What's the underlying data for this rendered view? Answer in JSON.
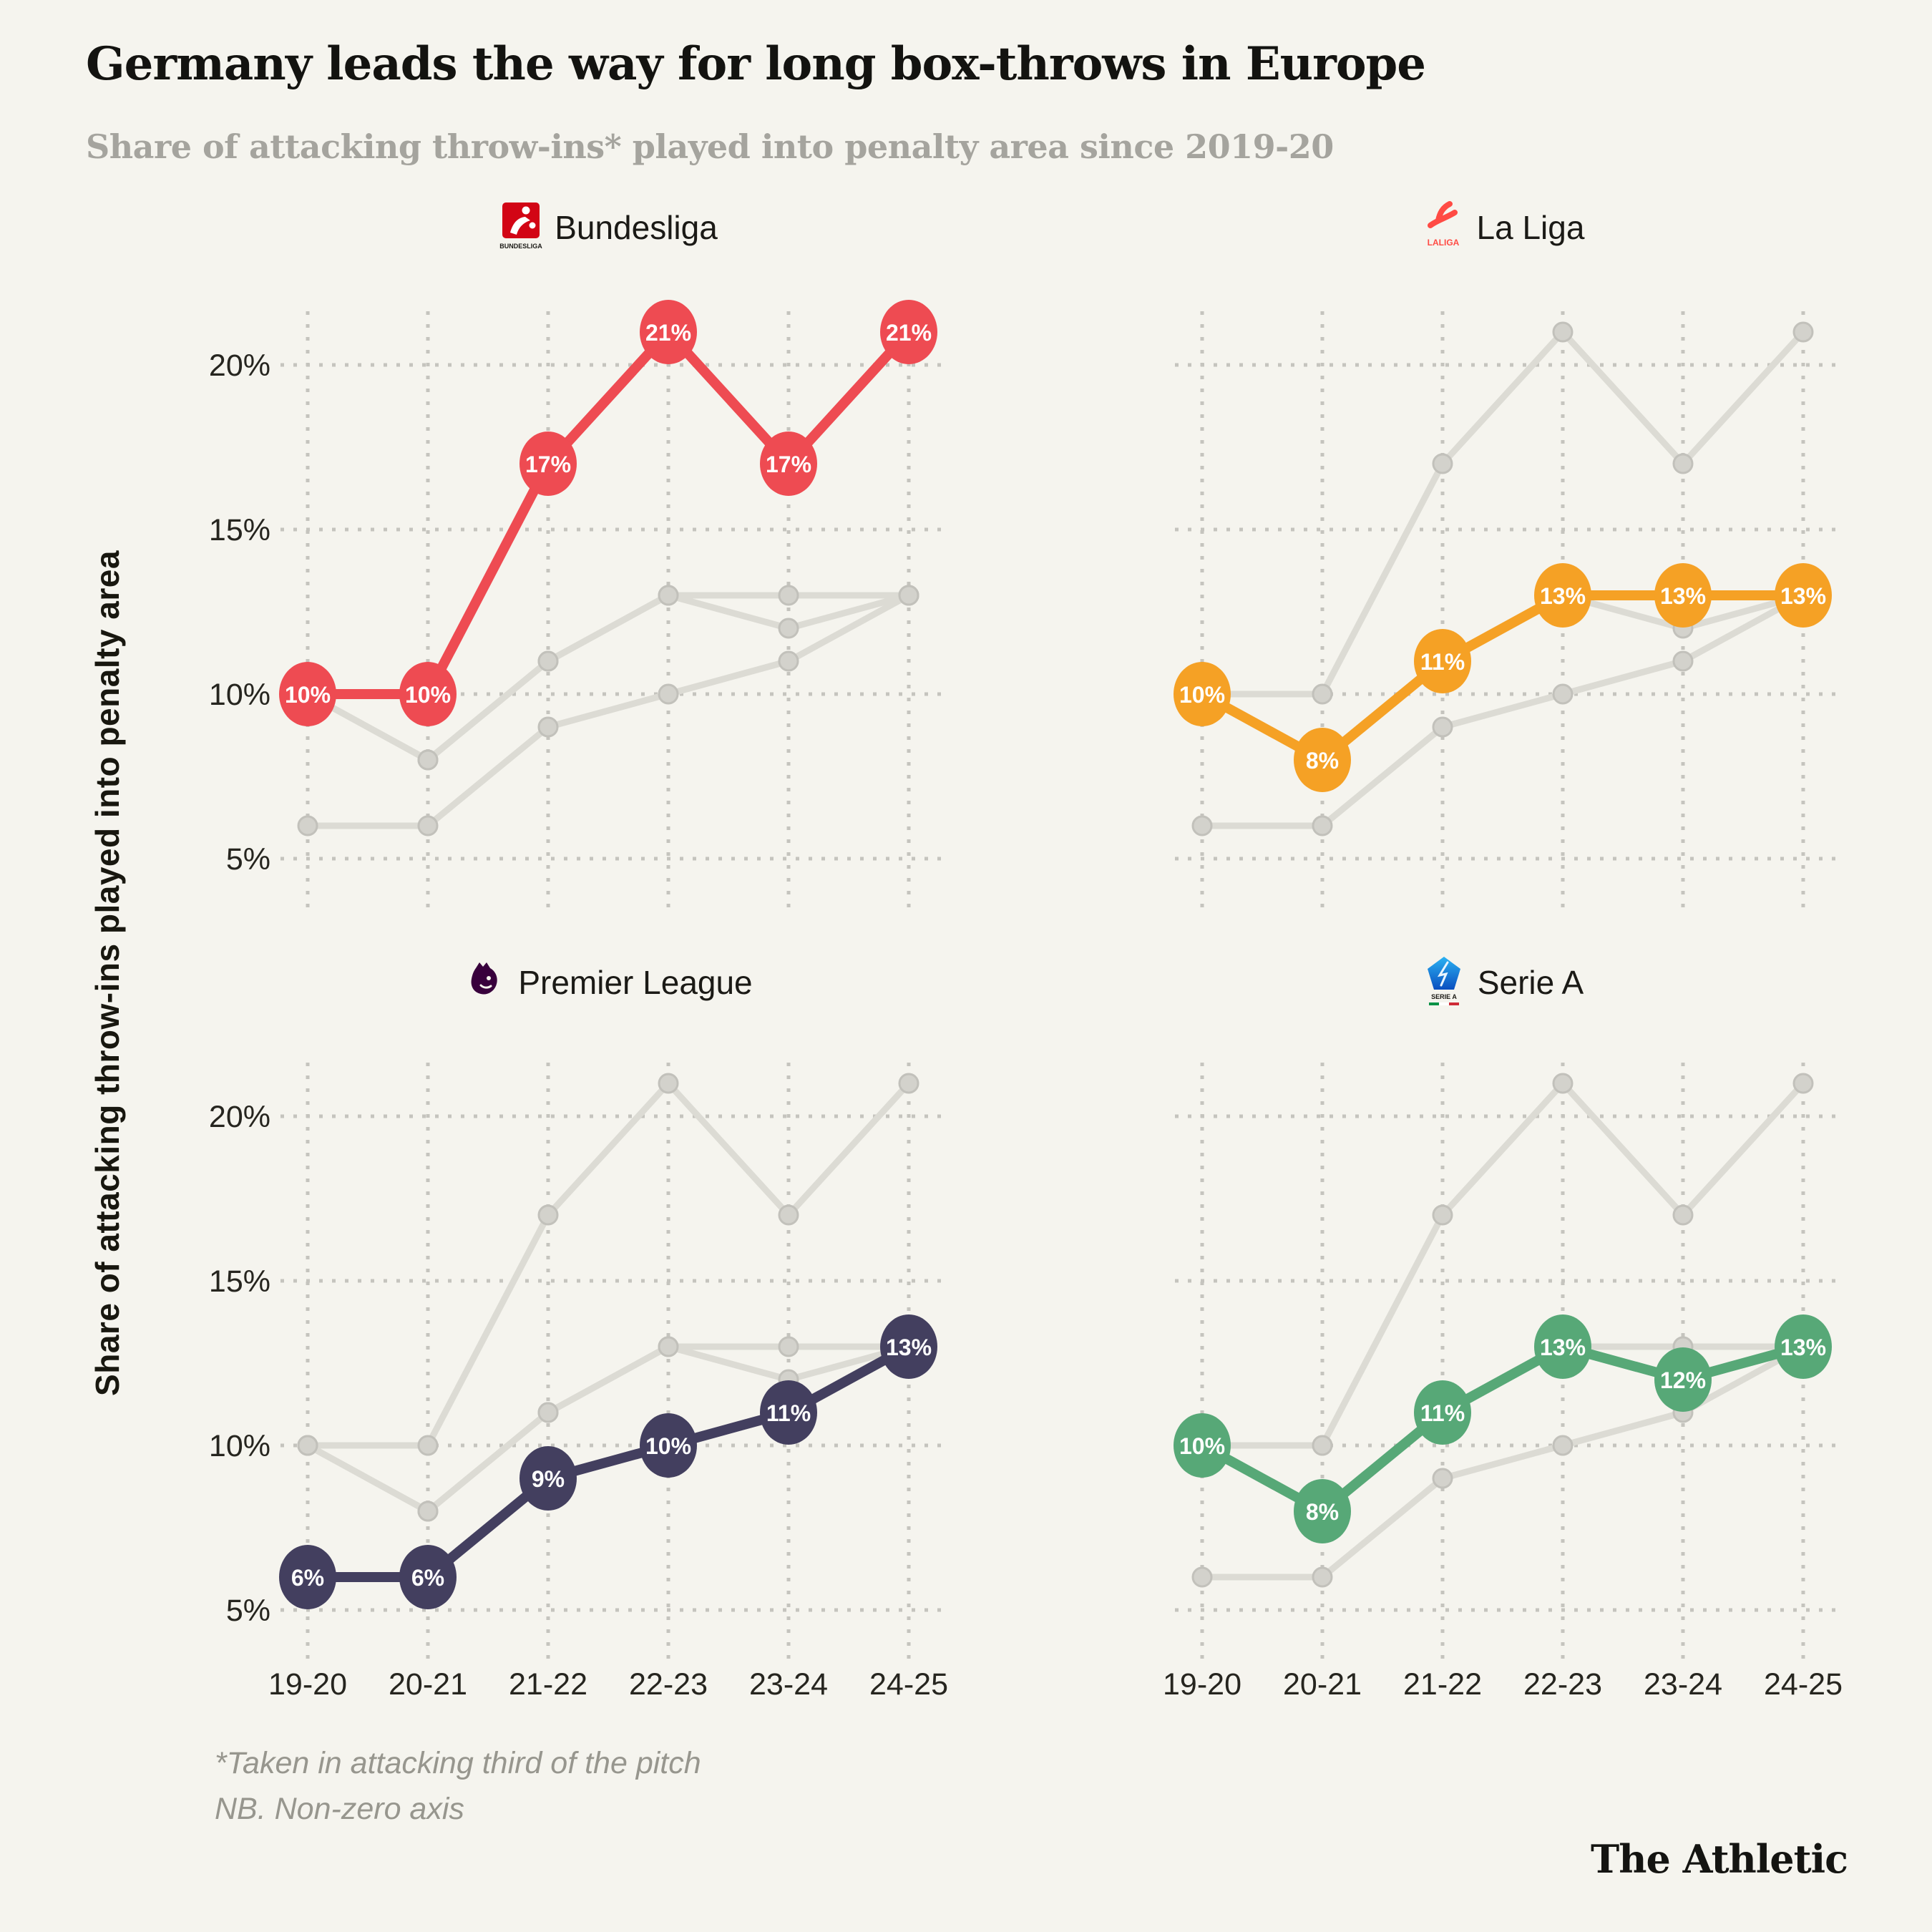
{
  "title": "Germany leads the way for long box-throws in Europe",
  "subtitle": "Share of attacking throw-ins* played into penalty area since 2019-20",
  "y_axis_title": "Share of attacking throw-ins played into penalty area",
  "footnote_line1": "*Taken in attacking third of the pitch",
  "footnote_line2": "NB. Non-zero axis",
  "brand": "The Athletic",
  "colors": {
    "background": "#f5f4ee",
    "gridline": "#c5c4be",
    "tick_text": "#26251f",
    "context_line": "#dcdbd4",
    "context_dot_fill": "#d3d2cc",
    "context_dot_stroke": "#c2c1bb",
    "marker_label_text": "#ffffff"
  },
  "panel_headers": [
    {
      "label": "Bundesliga",
      "logo": "bundesliga-logo"
    },
    {
      "label": "La Liga",
      "logo": "laliga-logo"
    },
    {
      "label": "Premier League",
      "logo": "premier-league-logo"
    },
    {
      "label": "Serie A",
      "logo": "serie-a-logo"
    }
  ],
  "logo_text": {
    "bundesliga": "BUNDESLIGA",
    "laliga": "LALIGA",
    "serie_a": "SERIE A"
  },
  "chart_data": {
    "type": "line",
    "layout_hint": "2x2 small multiples; each panel highlights one league, other three leagues shown as gray context lines",
    "categories": [
      "19-20",
      "20-21",
      "21-22",
      "22-23",
      "23-24",
      "24-25"
    ],
    "x_axis_labels_shown_on": "bottom row only",
    "y_ticks": [
      5,
      10,
      15,
      20
    ],
    "y_tick_labels": [
      "5%",
      "10%",
      "15%",
      "20%"
    ],
    "y_range": [
      4,
      23
    ],
    "grid": "dotted",
    "non_zero_axis": true,
    "label_format": "{v}%",
    "panels": [
      "Bundesliga",
      "La Liga",
      "Premier League",
      "Serie A"
    ],
    "series": [
      {
        "name": "Bundesliga",
        "color": "#ee4b52",
        "values": [
          10,
          10,
          17,
          21,
          17,
          21
        ]
      },
      {
        "name": "La Liga",
        "color": "#f5a125",
        "values": [
          10,
          8,
          11,
          13,
          13,
          13
        ]
      },
      {
        "name": "Premier League",
        "color": "#433f5f",
        "values": [
          6,
          6,
          9,
          10,
          11,
          13
        ]
      },
      {
        "name": "Serie A",
        "color": "#57a877",
        "values": [
          10,
          8,
          11,
          13,
          12,
          13
        ]
      }
    ]
  }
}
